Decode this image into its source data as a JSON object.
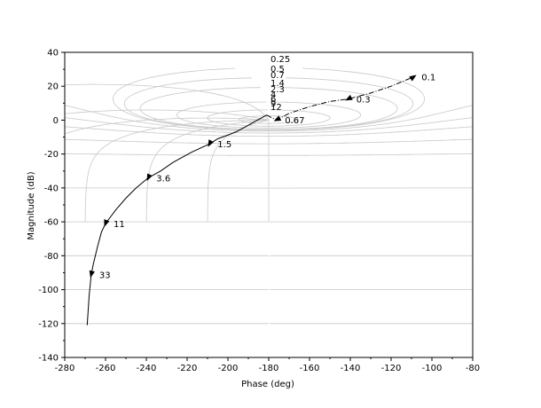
{
  "chart_data": {
    "type": "line",
    "title": "",
    "xlabel": "Phase (deg)",
    "ylabel": "Magnitude (dB)",
    "xlim": [
      -280,
      -80
    ],
    "ylim": [
      -140,
      40
    ],
    "x_ticks": [
      -280,
      -260,
      -240,
      -220,
      -200,
      -180,
      -160,
      -140,
      -120,
      -100,
      -80
    ],
    "y_ticks": [
      -140,
      -120,
      -100,
      -80,
      -60,
      -40,
      -20,
      0,
      20,
      40
    ],
    "grid": "nichols-chart",
    "iso_gain_labels": [
      "0.25",
      "0.5",
      "0.7",
      "1.4",
      "2.3",
      "4",
      "6",
      "9",
      "12"
    ],
    "series": [
      {
        "points": [
          {
            "x": -181,
            "y": 3
          },
          {
            "x": -178,
            "y": 1
          },
          {
            "x": -176,
            "y": 0.3
          },
          {
            "x": -170,
            "y": 4
          },
          {
            "x": -160,
            "y": 8
          },
          {
            "x": -150,
            "y": 11
          },
          {
            "x": -141,
            "y": 12.5
          },
          {
            "x": -130,
            "y": 16
          },
          {
            "x": -120,
            "y": 20
          },
          {
            "x": -109,
            "y": 25.5
          },
          {
            "x": -196,
            "y": -7
          },
          {
            "x": -205,
            "y": -11
          },
          {
            "x": -209,
            "y": -14
          },
          {
            "x": -218,
            "y": -19
          },
          {
            "x": -227,
            "y": -25
          },
          {
            "x": -233,
            "y": -30
          },
          {
            "x": -239,
            "y": -34
          },
          {
            "x": -245,
            "y": -40
          },
          {
            "x": -250,
            "y": -46
          },
          {
            "x": -255,
            "y": -53
          },
          {
            "x": -260,
            "y": -61
          },
          {
            "x": -262,
            "y": -66
          },
          {
            "x": -264,
            "y": -75
          },
          {
            "x": -266,
            "y": -85
          },
          {
            "x": -267,
            "y": -91
          },
          {
            "x": -268,
            "y": -103
          },
          {
            "x": -269,
            "y": -121
          }
        ]
      }
    ],
    "frequency_markers": [
      {
        "label": "0.1",
        "x": -109,
        "y": 25.5
      },
      {
        "label": "0.3",
        "x": -141,
        "y": 12.5
      },
      {
        "label": "0.67",
        "x": -176,
        "y": 0.3
      },
      {
        "label": "1.5",
        "x": -209,
        "y": -14
      },
      {
        "label": "3.6",
        "x": -239,
        "y": -34
      },
      {
        "label": "11",
        "x": -260,
        "y": -61
      },
      {
        "label": "33",
        "x": -267,
        "y": -91
      }
    ]
  }
}
